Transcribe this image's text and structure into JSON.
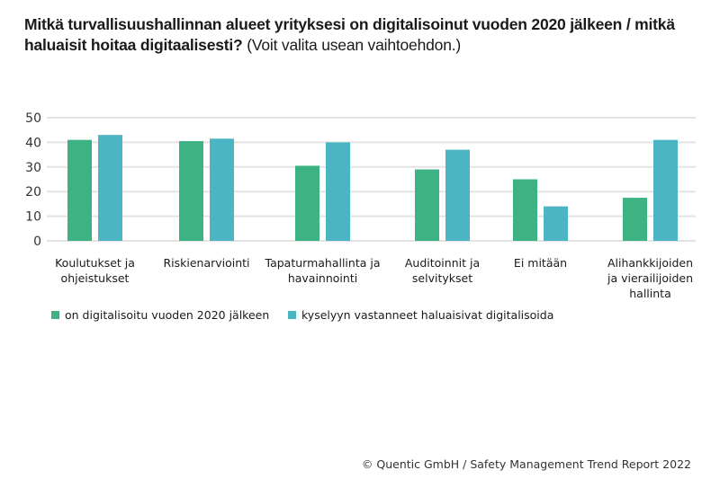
{
  "chart_data": {
    "type": "bar",
    "title_bold": "Mitkä turvallisuushallinnan alueet yrityksesi on digitalisoinut vuoden 2020 jälkeen / mitkä haluaisit hoitaa digitaalisesti?",
    "title_normal": " (Voit valita usean vaihtoehdon.)",
    "xlabel": "",
    "ylabel": "",
    "ylim": [
      0,
      50
    ],
    "yticks": [
      "0",
      "10",
      "20",
      "30",
      "40",
      "50"
    ],
    "grid": true,
    "legend_position": "bottom-left",
    "categories": [
      "Koulutukset ja ohjeistukset",
      "Riskienarviointi",
      "Tapaturmahallinta ja havainnointi",
      "Auditoinnit ja selvitykset",
      "Ei mitään",
      "Alihankkijoiden ja vierailijoiden hallinta"
    ],
    "series": [
      {
        "name": "on digitalisoitu vuoden 2020 jälkeen",
        "color": "#3db384",
        "values": [
          41,
          40.5,
          30.5,
          29,
          25,
          17.5
        ]
      },
      {
        "name": "kyselyyn vastanneet haluaisivat digitalisoida",
        "color": "#4bb5c4",
        "values": [
          43,
          41.5,
          40,
          37,
          14,
          41
        ]
      }
    ]
  },
  "footer": "© Quentic GmbH / Safety Management Trend Report 2022"
}
